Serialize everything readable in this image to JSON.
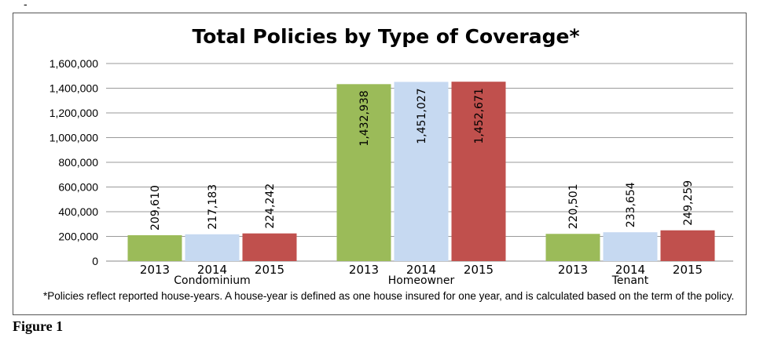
{
  "corner_mark": "-",
  "figure_caption": "Figure 1",
  "footnote": "*Policies reflect reported house-years. A house-year is defined as one house insured for one year, and is calculated based on the term of the policy.",
  "chart_data": {
    "type": "bar",
    "title": "Total Policies by Type of Coverage*",
    "xlabel": "",
    "ylabel": "",
    "ylim": [
      0,
      1600000
    ],
    "yticks": [
      0,
      200000,
      400000,
      600000,
      800000,
      1000000,
      1200000,
      1400000,
      1600000
    ],
    "ytick_labels": [
      "0",
      "200,000",
      "400,000",
      "600,000",
      "800,000",
      "1,000,000",
      "1,200,000",
      "1,400,000",
      "1,600,000"
    ],
    "grid": true,
    "legend": "none",
    "categories": [
      "Condominium",
      "Homeowner",
      "Tenant"
    ],
    "series": [
      {
        "year": "2013",
        "color": "#9bbb59",
        "values": [
          209610,
          1432938,
          220501
        ],
        "labels": [
          "209,610",
          "1,432,938",
          "220,501"
        ]
      },
      {
        "year": "2014",
        "color": "#c6d9f1",
        "values": [
          217183,
          1451027,
          233654
        ],
        "labels": [
          "217,183",
          "1,451,027",
          "233,654"
        ]
      },
      {
        "year": "2015",
        "color": "#c0504d",
        "values": [
          224242,
          1452671,
          249259
        ],
        "labels": [
          "224,242",
          "1,452,671",
          "249,259"
        ]
      }
    ]
  }
}
